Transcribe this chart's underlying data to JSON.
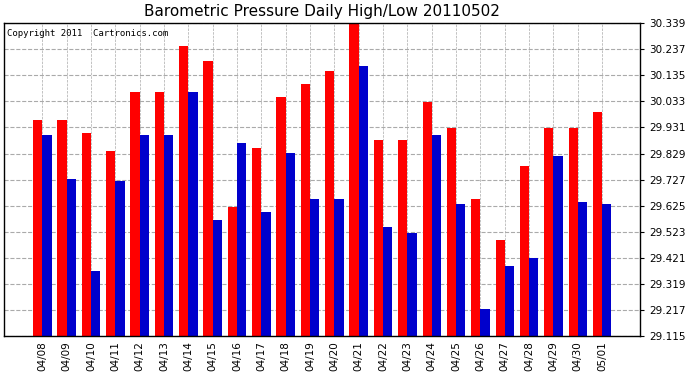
{
  "title": "Barometric Pressure Daily High/Low 20110502",
  "copyright": "Copyright 2011  Cartronics.com",
  "dates": [
    "04/08",
    "04/09",
    "04/10",
    "04/11",
    "04/12",
    "04/13",
    "04/14",
    "04/15",
    "04/16",
    "04/17",
    "04/18",
    "04/19",
    "04/20",
    "04/21",
    "04/22",
    "04/23",
    "04/24",
    "04/25",
    "04/26",
    "04/27",
    "04/28",
    "04/29",
    "04/30",
    "05/01"
  ],
  "highs": [
    29.96,
    29.96,
    29.91,
    29.84,
    30.07,
    30.07,
    30.25,
    30.19,
    29.62,
    29.85,
    30.05,
    30.1,
    30.15,
    30.37,
    29.88,
    29.88,
    30.03,
    29.93,
    29.65,
    29.49,
    29.78,
    29.93,
    29.93,
    29.99
  ],
  "lows": [
    29.9,
    29.73,
    29.37,
    29.72,
    29.9,
    29.9,
    30.07,
    29.57,
    29.87,
    29.6,
    29.83,
    29.65,
    29.65,
    30.17,
    29.54,
    29.52,
    29.9,
    29.63,
    29.22,
    29.39,
    29.42,
    29.82,
    29.64,
    29.63
  ],
  "high_color": "#ff0000",
  "low_color": "#0000cc",
  "background_color": "#ffffff",
  "grid_color": "#aaaaaa",
  "yticks": [
    29.115,
    29.217,
    29.319,
    29.421,
    29.523,
    29.625,
    29.727,
    29.829,
    29.931,
    30.033,
    30.135,
    30.237,
    30.339
  ],
  "ymin": 29.115,
  "ymax": 30.339,
  "title_fontsize": 11,
  "tick_fontsize": 7.5,
  "copyright_fontsize": 6.5
}
